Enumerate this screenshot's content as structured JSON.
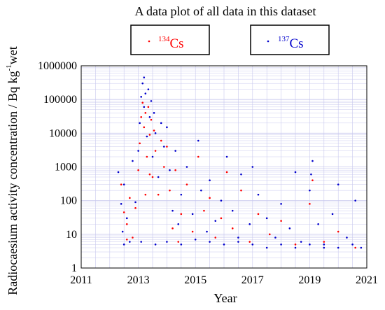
{
  "chart_data": {
    "type": "scatter",
    "title": "A data plot of all data in this dataset",
    "xlabel": "Year",
    "ylabel": "Radiocaesium activity concentration / Bq kg",
    "ylabel_sup": "-1",
    "ylabel_tail": "wet",
    "x_scale": "linear",
    "y_scale": "log",
    "xlim": [
      2011,
      2021
    ],
    "ylim": [
      1,
      1000000
    ],
    "x_ticks": [
      "2011",
      "2013",
      "2015",
      "2017",
      "2019",
      "2021"
    ],
    "y_ticks": [
      "1",
      "10",
      "100",
      "1000",
      "10000",
      "100000",
      "1000000"
    ],
    "grid": true,
    "legend": [
      {
        "name_sup": "134",
        "name": "Cs",
        "color": "#ff0000"
      },
      {
        "name_sup": "137",
        "name": "Cs",
        "color": "#0000cc"
      }
    ],
    "series": [
      {
        "name": "134Cs",
        "color": "#ff0000",
        "points": [
          [
            2012.4,
            300
          ],
          [
            2012.5,
            45
          ],
          [
            2012.6,
            20
          ],
          [
            2012.7,
            120
          ],
          [
            2012.8,
            8
          ],
          [
            2012.9,
            60
          ],
          [
            2013.0,
            800
          ],
          [
            2013.05,
            5000
          ],
          [
            2013.1,
            30000
          ],
          [
            2013.15,
            80000
          ],
          [
            2013.2,
            15000
          ],
          [
            2013.25,
            40000
          ],
          [
            2013.3,
            2000
          ],
          [
            2013.35,
            60000
          ],
          [
            2013.4,
            9000
          ],
          [
            2013.45,
            25000
          ],
          [
            2013.5,
            500
          ],
          [
            2013.55,
            12000
          ],
          [
            2013.6,
            3000
          ],
          [
            2013.7,
            150
          ],
          [
            2013.8,
            6000
          ],
          [
            2013.9,
            1000
          ],
          [
            2014.0,
            4000
          ],
          [
            2014.1,
            200
          ],
          [
            2014.2,
            15
          ],
          [
            2014.3,
            800
          ],
          [
            2014.5,
            40
          ],
          [
            2014.7,
            300
          ],
          [
            2014.9,
            12
          ],
          [
            2015.1,
            2000
          ],
          [
            2015.3,
            50
          ],
          [
            2015.5,
            120
          ],
          [
            2015.7,
            8
          ],
          [
            2015.9,
            30
          ],
          [
            2016.1,
            700
          ],
          [
            2016.3,
            15
          ],
          [
            2016.6,
            200
          ],
          [
            2016.9,
            6
          ],
          [
            2017.2,
            40
          ],
          [
            2017.6,
            10
          ],
          [
            2018.0,
            25
          ],
          [
            2018.5,
            5
          ],
          [
            2019.0,
            80
          ],
          [
            2019.1,
            400
          ],
          [
            2019.5,
            6
          ],
          [
            2020.0,
            12
          ],
          [
            2020.6,
            4
          ],
          [
            2013.25,
            150
          ],
          [
            2013.4,
            600
          ],
          [
            2012.6,
            7
          ],
          [
            2014.4,
            6
          ]
        ]
      },
      {
        "name": "137Cs",
        "color": "#0000cc",
        "points": [
          [
            2012.3,
            700
          ],
          [
            2012.4,
            80
          ],
          [
            2012.45,
            12
          ],
          [
            2012.5,
            300
          ],
          [
            2012.6,
            30
          ],
          [
            2012.7,
            6
          ],
          [
            2012.8,
            1500
          ],
          [
            2012.9,
            90
          ],
          [
            2013.0,
            3000
          ],
          [
            2013.05,
            20000
          ],
          [
            2013.1,
            120000
          ],
          [
            2013.15,
            300000
          ],
          [
            2013.2,
            60000
          ],
          [
            2013.25,
            150000
          ],
          [
            2013.3,
            8000
          ],
          [
            2013.35,
            200000
          ],
          [
            2013.4,
            30000
          ],
          [
            2013.45,
            90000
          ],
          [
            2013.5,
            2000
          ],
          [
            2013.55,
            40000
          ],
          [
            2013.6,
            10000
          ],
          [
            2013.7,
            500
          ],
          [
            2013.8,
            20000
          ],
          [
            2013.9,
            4000
          ],
          [
            2014.0,
            15000
          ],
          [
            2014.1,
            800
          ],
          [
            2014.2,
            50
          ],
          [
            2014.3,
            3000
          ],
          [
            2014.4,
            20
          ],
          [
            2014.5,
            150
          ],
          [
            2014.7,
            1000
          ],
          [
            2014.9,
            40
          ],
          [
            2015.1,
            6000
          ],
          [
            2015.2,
            200
          ],
          [
            2015.4,
            12
          ],
          [
            2015.5,
            400
          ],
          [
            2015.7,
            25
          ],
          [
            2015.9,
            100
          ],
          [
            2016.1,
            2000
          ],
          [
            2016.3,
            50
          ],
          [
            2016.5,
            8
          ],
          [
            2016.6,
            600
          ],
          [
            2016.9,
            20
          ],
          [
            2017.0,
            1000
          ],
          [
            2017.2,
            150
          ],
          [
            2017.5,
            30
          ],
          [
            2017.8,
            8
          ],
          [
            2018.0,
            80
          ],
          [
            2018.3,
            15
          ],
          [
            2018.5,
            700
          ],
          [
            2018.7,
            6
          ],
          [
            2019.0,
            200
          ],
          [
            2019.05,
            600
          ],
          [
            2019.1,
            1500
          ],
          [
            2019.3,
            20
          ],
          [
            2019.5,
            5
          ],
          [
            2019.8,
            40
          ],
          [
            2020.0,
            300
          ],
          [
            2020.3,
            8
          ],
          [
            2020.6,
            100
          ],
          [
            2020.8,
            4
          ],
          [
            2012.5,
            5
          ],
          [
            2013.1,
            6
          ],
          [
            2013.6,
            5
          ],
          [
            2014.0,
            6
          ],
          [
            2014.5,
            5
          ],
          [
            2015.0,
            7
          ],
          [
            2015.5,
            6
          ],
          [
            2016.0,
            5
          ],
          [
            2016.5,
            6
          ],
          [
            2017.0,
            5
          ],
          [
            2017.5,
            4
          ],
          [
            2018.0,
            5
          ],
          [
            2018.5,
            4
          ],
          [
            2019.0,
            5
          ],
          [
            2019.5,
            4
          ],
          [
            2020.0,
            4
          ],
          [
            2020.5,
            5
          ],
          [
            2013.2,
            450000
          ]
        ]
      }
    ]
  }
}
